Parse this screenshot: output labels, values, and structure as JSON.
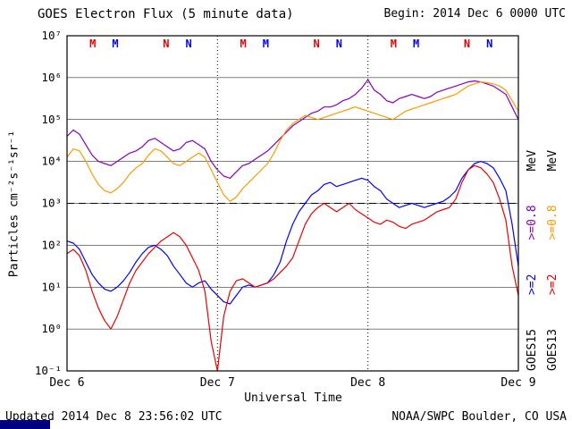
{
  "header": {
    "title": "GOES Electron Flux (5 minute data)",
    "begin_label": "Begin: 2014 Dec 6 0000 UTC"
  },
  "footer": {
    "updated": "Updated 2014 Dec 8 23:56:02 UTC",
    "source": "NOAA/SWPC Boulder, CO USA"
  },
  "legend": {
    "columns": [
      {
        "satellite": "GOES15",
        "ge2": ">=2",
        "ge08": ">=0.8",
        "mev": "MeV",
        "ge2_color": "#0000ff",
        "ge08_color": "#8800bb"
      },
      {
        "satellite": "GOES13",
        "ge2": ">=2",
        "ge08": ">=0.8",
        "mev": "MeV",
        "ge2_color": "#ee0000",
        "ge08_color": "#ff9900"
      }
    ]
  },
  "chart_data": {
    "type": "line",
    "title": "GOES Electron Flux (5 minute data)",
    "xlabel": "Universal Time",
    "ylabel": "Particles cm⁻²s⁻¹sr⁻¹",
    "y_scale": "log10",
    "y_unit": "Particles cm^-2 s^-1 sr^-1",
    "ylim_log10": [
      -1,
      7
    ],
    "x_unit": "hours since 2014 Dec 6 0000 UTC",
    "x_range": [
      0,
      72
    ],
    "time_step_hours": 1,
    "y_tick_exps": [
      7,
      6,
      5,
      4,
      3,
      2,
      1,
      0,
      -1
    ],
    "y_tick_labels": [
      "10⁷",
      "10⁶",
      "10⁵",
      "10⁴",
      "10³",
      "10²",
      "10¹",
      "10⁰",
      "10⁻¹"
    ],
    "x_ticks": [
      {
        "hour": 0,
        "label": "Dec 6"
      },
      {
        "hour": 24,
        "label": "Dec 7"
      },
      {
        "hour": 48,
        "label": "Dec 8"
      },
      {
        "hour": 72,
        "label": "Dec 9"
      }
    ],
    "day_gridlines_hours": [
      24,
      48
    ],
    "threshold": {
      "log10_value": 3,
      "style": "dashed"
    },
    "grid": "solid horizontal line at each decade",
    "legend_position": "right, rotated",
    "noon_midnight_markers": [
      {
        "hour": 4.1,
        "label": "M",
        "color": "#ee0000"
      },
      {
        "hour": 7.7,
        "label": "M",
        "color": "#0000ff"
      },
      {
        "hour": 15.8,
        "label": "N",
        "color": "#ee0000"
      },
      {
        "hour": 19.4,
        "label": "N",
        "color": "#0000ff"
      },
      {
        "hour": 28.1,
        "label": "M",
        "color": "#ee0000"
      },
      {
        "hour": 31.7,
        "label": "M",
        "color": "#0000ff"
      },
      {
        "hour": 39.8,
        "label": "N",
        "color": "#ee0000"
      },
      {
        "hour": 43.4,
        "label": "N",
        "color": "#0000ff"
      },
      {
        "hour": 52.1,
        "label": "M",
        "color": "#ee0000"
      },
      {
        "hour": 55.7,
        "label": "M",
        "color": "#0000ff"
      },
      {
        "hour": 63.8,
        "label": "N",
        "color": "#ee0000"
      },
      {
        "hour": 67.4,
        "label": "N",
        "color": "#0000ff"
      }
    ],
    "series": [
      {
        "id": "goes15-e08",
        "name": "GOES15 >=0.8 MeV",
        "color": "#8800bb",
        "log10_values": [
          4.6,
          4.75,
          4.65,
          4.4,
          4.15,
          4.0,
          3.95,
          3.9,
          4.0,
          4.1,
          4.2,
          4.25,
          4.35,
          4.5,
          4.55,
          4.45,
          4.35,
          4.25,
          4.3,
          4.45,
          4.5,
          4.4,
          4.3,
          4.0,
          3.8,
          3.65,
          3.6,
          3.75,
          3.9,
          3.95,
          4.05,
          4.15,
          4.25,
          4.4,
          4.55,
          4.7,
          4.85,
          4.95,
          5.05,
          5.15,
          5.2,
          5.3,
          5.3,
          5.35,
          5.45,
          5.5,
          5.6,
          5.75,
          5.95,
          5.7,
          5.6,
          5.45,
          5.4,
          5.5,
          5.55,
          5.6,
          5.55,
          5.5,
          5.55,
          5.65,
          5.7,
          5.75,
          5.8,
          5.85,
          5.9,
          5.92,
          5.9,
          5.85,
          5.8,
          5.7,
          5.6,
          5.3,
          5.0
        ]
      },
      {
        "id": "goes13-e08",
        "name": "GOES13 >=0.8 MeV",
        "color": "#ff9900",
        "log10_values": [
          4.1,
          4.3,
          4.25,
          4.0,
          3.7,
          3.45,
          3.3,
          3.25,
          3.35,
          3.5,
          3.7,
          3.85,
          3.95,
          4.15,
          4.3,
          4.25,
          4.1,
          3.95,
          3.9,
          4.0,
          4.1,
          4.2,
          4.1,
          3.8,
          3.5,
          3.2,
          3.05,
          3.15,
          3.35,
          3.5,
          3.65,
          3.8,
          3.95,
          4.2,
          4.5,
          4.75,
          4.9,
          5.0,
          5.1,
          5.05,
          5.0,
          5.05,
          5.1,
          5.15,
          5.2,
          5.25,
          5.3,
          5.25,
          5.2,
          5.15,
          5.1,
          5.05,
          5.0,
          5.1,
          5.2,
          5.25,
          5.3,
          5.35,
          5.4,
          5.45,
          5.5,
          5.55,
          5.6,
          5.7,
          5.8,
          5.85,
          5.9,
          5.88,
          5.85,
          5.8,
          5.7,
          5.45,
          5.2
        ]
      },
      {
        "id": "goes15-e2",
        "name": "GOES15 >=2 MeV",
        "color": "#0000ff",
        "log10_values": [
          2.1,
          2.05,
          1.9,
          1.6,
          1.3,
          1.1,
          0.95,
          0.9,
          1.0,
          1.15,
          1.35,
          1.6,
          1.8,
          1.95,
          2.0,
          1.9,
          1.75,
          1.5,
          1.3,
          1.1,
          1.0,
          1.1,
          1.15,
          0.95,
          0.8,
          0.65,
          0.6,
          0.8,
          1.0,
          1.05,
          1.0,
          1.05,
          1.1,
          1.3,
          1.6,
          2.1,
          2.5,
          2.8,
          3.0,
          3.2,
          3.3,
          3.45,
          3.5,
          3.4,
          3.45,
          3.5,
          3.55,
          3.6,
          3.55,
          3.4,
          3.3,
          3.1,
          3.0,
          2.9,
          2.95,
          3.0,
          2.95,
          2.9,
          2.95,
          3.0,
          3.05,
          3.15,
          3.3,
          3.6,
          3.8,
          3.95,
          4.0,
          3.95,
          3.85,
          3.6,
          3.3,
          2.5,
          1.5
        ]
      },
      {
        "id": "goes13-e2",
        "name": "GOES13 >=2 MeV",
        "color": "#ee0000",
        "log10_values": [
          1.8,
          1.9,
          1.75,
          1.4,
          0.9,
          0.5,
          0.2,
          0.0,
          0.3,
          0.7,
          1.1,
          1.4,
          1.6,
          1.8,
          1.95,
          2.1,
          2.2,
          2.3,
          2.2,
          2.0,
          1.7,
          1.4,
          0.9,
          -0.3,
          -1.0,
          0.3,
          0.9,
          1.15,
          1.2,
          1.1,
          1.0,
          1.05,
          1.1,
          1.2,
          1.35,
          1.5,
          1.7,
          2.1,
          2.5,
          2.75,
          2.9,
          3.0,
          2.9,
          2.8,
          2.9,
          3.0,
          2.85,
          2.75,
          2.65,
          2.55,
          2.5,
          2.6,
          2.55,
          2.45,
          2.4,
          2.5,
          2.55,
          2.6,
          2.7,
          2.8,
          2.85,
          2.9,
          3.1,
          3.5,
          3.8,
          3.9,
          3.85,
          3.7,
          3.5,
          3.1,
          2.6,
          1.5,
          0.8
        ]
      }
    ]
  }
}
